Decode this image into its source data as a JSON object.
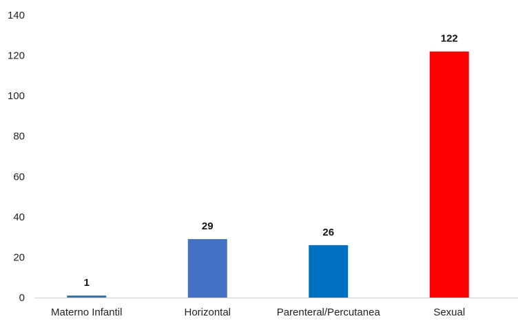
{
  "chart_data": {
    "type": "bar",
    "categories": [
      "Materno Infantil",
      "Horizontal",
      "Parenteral/Percutanea",
      "Sexual"
    ],
    "values": [
      1,
      29,
      26,
      122
    ],
    "bar_colors": [
      "#2E75B6",
      "#4472C4",
      "#0070C0",
      "#FF0000"
    ],
    "data_labels": [
      "1",
      "29",
      "26",
      "122"
    ],
    "y_ticks": [
      "0",
      "20",
      "40",
      "60",
      "80",
      "100",
      "120",
      "140"
    ],
    "ylim": [
      0,
      140
    ],
    "grid": false,
    "legend": "none",
    "title": "",
    "xlabel": "",
    "ylabel": ""
  }
}
